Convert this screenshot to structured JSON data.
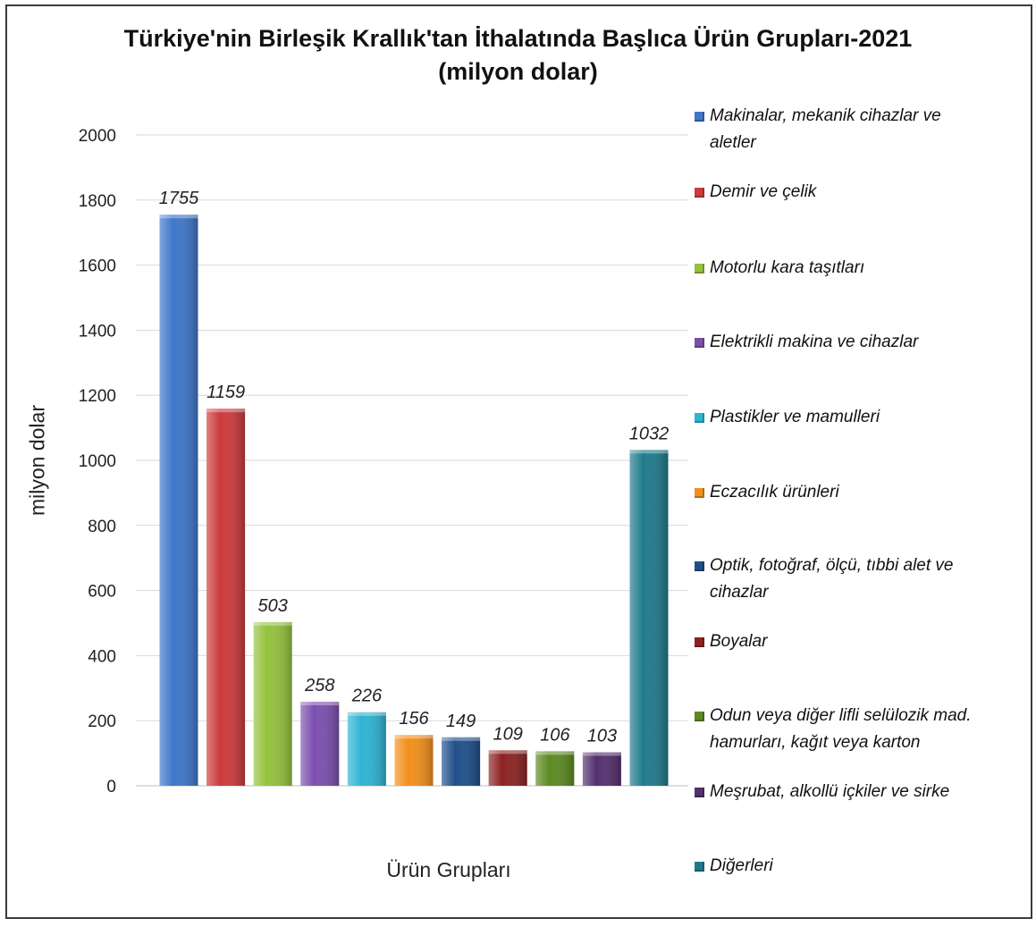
{
  "chart_data": {
    "type": "bar",
    "title_line1": "Türkiye'nin Birleşik Krallık'tan İthalatında Başlıca Ürün Grupları-2021",
    "title_line2": "(milyon dolar)",
    "xlabel": "Ürün Grupları",
    "ylabel": "milyon dolar",
    "ylim": [
      0,
      2000
    ],
    "yticks": [
      0,
      200,
      400,
      600,
      800,
      1000,
      1200,
      1400,
      1600,
      1800,
      2000
    ],
    "grid": true,
    "legend_position": "right",
    "categories": [
      "Makinalar, mekanik cihazlar ve aletler",
      "Demir ve çelik",
      "Motorlu kara taşıtları",
      "Elektrikli makina ve cihazlar",
      "Plastikler ve mamulleri",
      "Eczacılık ürünleri",
      "Optik, fotoğraf, ölçü, tıbbi alet ve cihazlar",
      "Boyalar",
      "Odun veya diğer lifli selülozik mad. hamurları, kağıt veya karton",
      "Meşrubat, alkollü içkiler ve sirke",
      "Diğerleri"
    ],
    "legend_lines": [
      [
        "Makinalar, mekanik cihazlar ve",
        "aletler"
      ],
      [
        "Demir ve çelik"
      ],
      [
        "Motorlu kara taşıtları"
      ],
      [
        "Elektrikli makina ve cihazlar"
      ],
      [
        "Plastikler ve mamulleri"
      ],
      [
        "Eczacılık ürünleri"
      ],
      [
        "Optik, fotoğraf, ölçü, tıbbi alet ve",
        "cihazlar"
      ],
      [
        "Boyalar"
      ],
      [
        "Odun veya diğer lifli selülozik mad.",
        "hamurları, kağıt veya karton"
      ],
      [
        "Meşrubat, alkollü içkiler ve sirke"
      ],
      [
        "Diğerleri"
      ]
    ],
    "values": [
      1755,
      1159,
      503,
      258,
      226,
      156,
      149,
      109,
      106,
      103,
      1032
    ],
    "colors": [
      "#3f76c9",
      "#cc3b3b",
      "#94c23e",
      "#7c4fae",
      "#2eb4d3",
      "#f28f1c",
      "#1f4f8b",
      "#8c2323",
      "#5d8a22",
      "#55306f",
      "#1f7b8c"
    ]
  }
}
